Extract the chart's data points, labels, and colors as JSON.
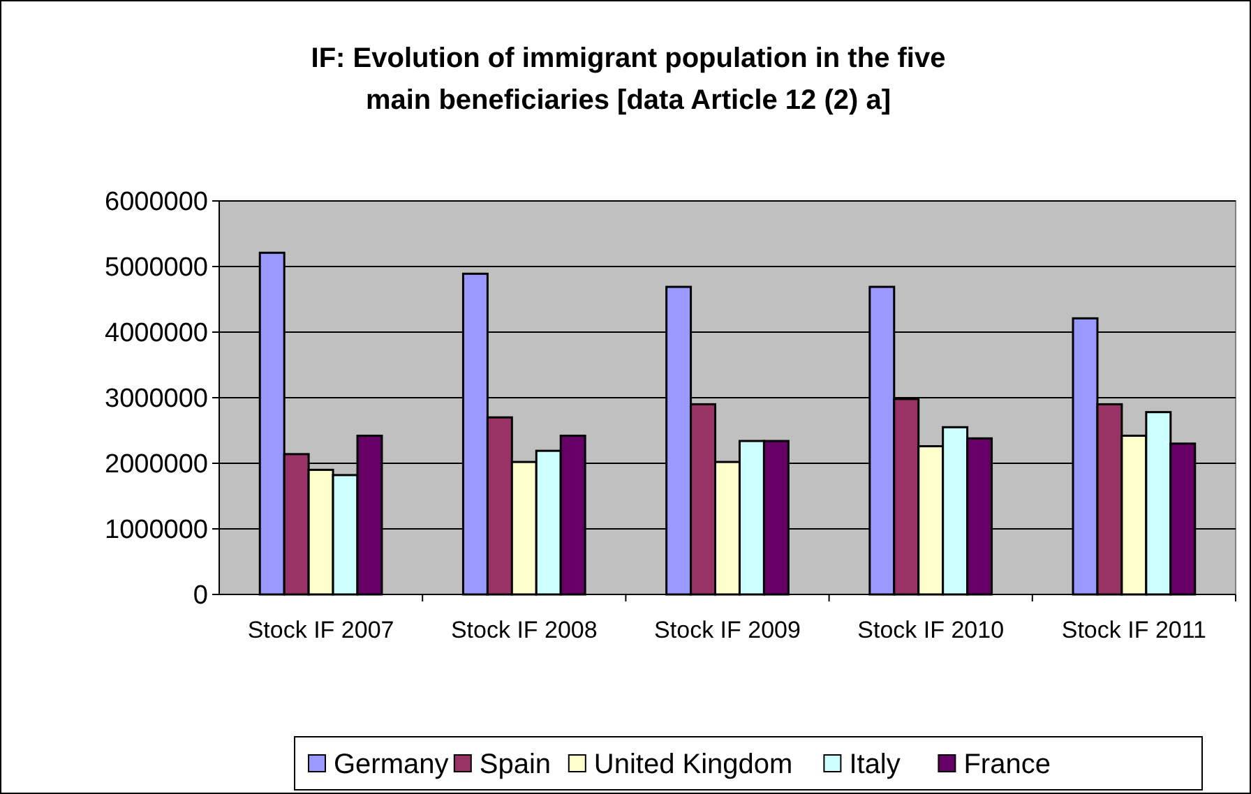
{
  "chart_data": {
    "type": "bar",
    "title": "IF: Evolution of immigrant population in the five main beneficiaries [data Article 12 (2) a]",
    "categories": [
      "Stock IF 2007",
      "Stock IF 2008",
      "Stock IF 2009",
      "Stock IF 2010",
      "Stock IF 2011"
    ],
    "series": [
      {
        "name": "Germany",
        "color": "#9999ff",
        "values": [
          5210000,
          4890000,
          4690000,
          4690000,
          4210000
        ]
      },
      {
        "name": "Spain",
        "color": "#993366",
        "values": [
          2140000,
          2700000,
          2900000,
          2980000,
          2900000
        ]
      },
      {
        "name": "United Kingdom",
        "color": "#ffffcc",
        "values": [
          1900000,
          2020000,
          2020000,
          2260000,
          2420000
        ]
      },
      {
        "name": "Italy",
        "color": "#ccffff",
        "values": [
          1820000,
          2190000,
          2340000,
          2550000,
          2780000
        ]
      },
      {
        "name": "France",
        "color": "#660066",
        "values": [
          2420000,
          2420000,
          2340000,
          2380000,
          2300000
        ]
      }
    ],
    "ylim": [
      0,
      6000000
    ],
    "yticks": [
      0,
      1000000,
      2000000,
      3000000,
      4000000,
      5000000,
      6000000
    ],
    "grid": "y",
    "legend": "bottom"
  }
}
